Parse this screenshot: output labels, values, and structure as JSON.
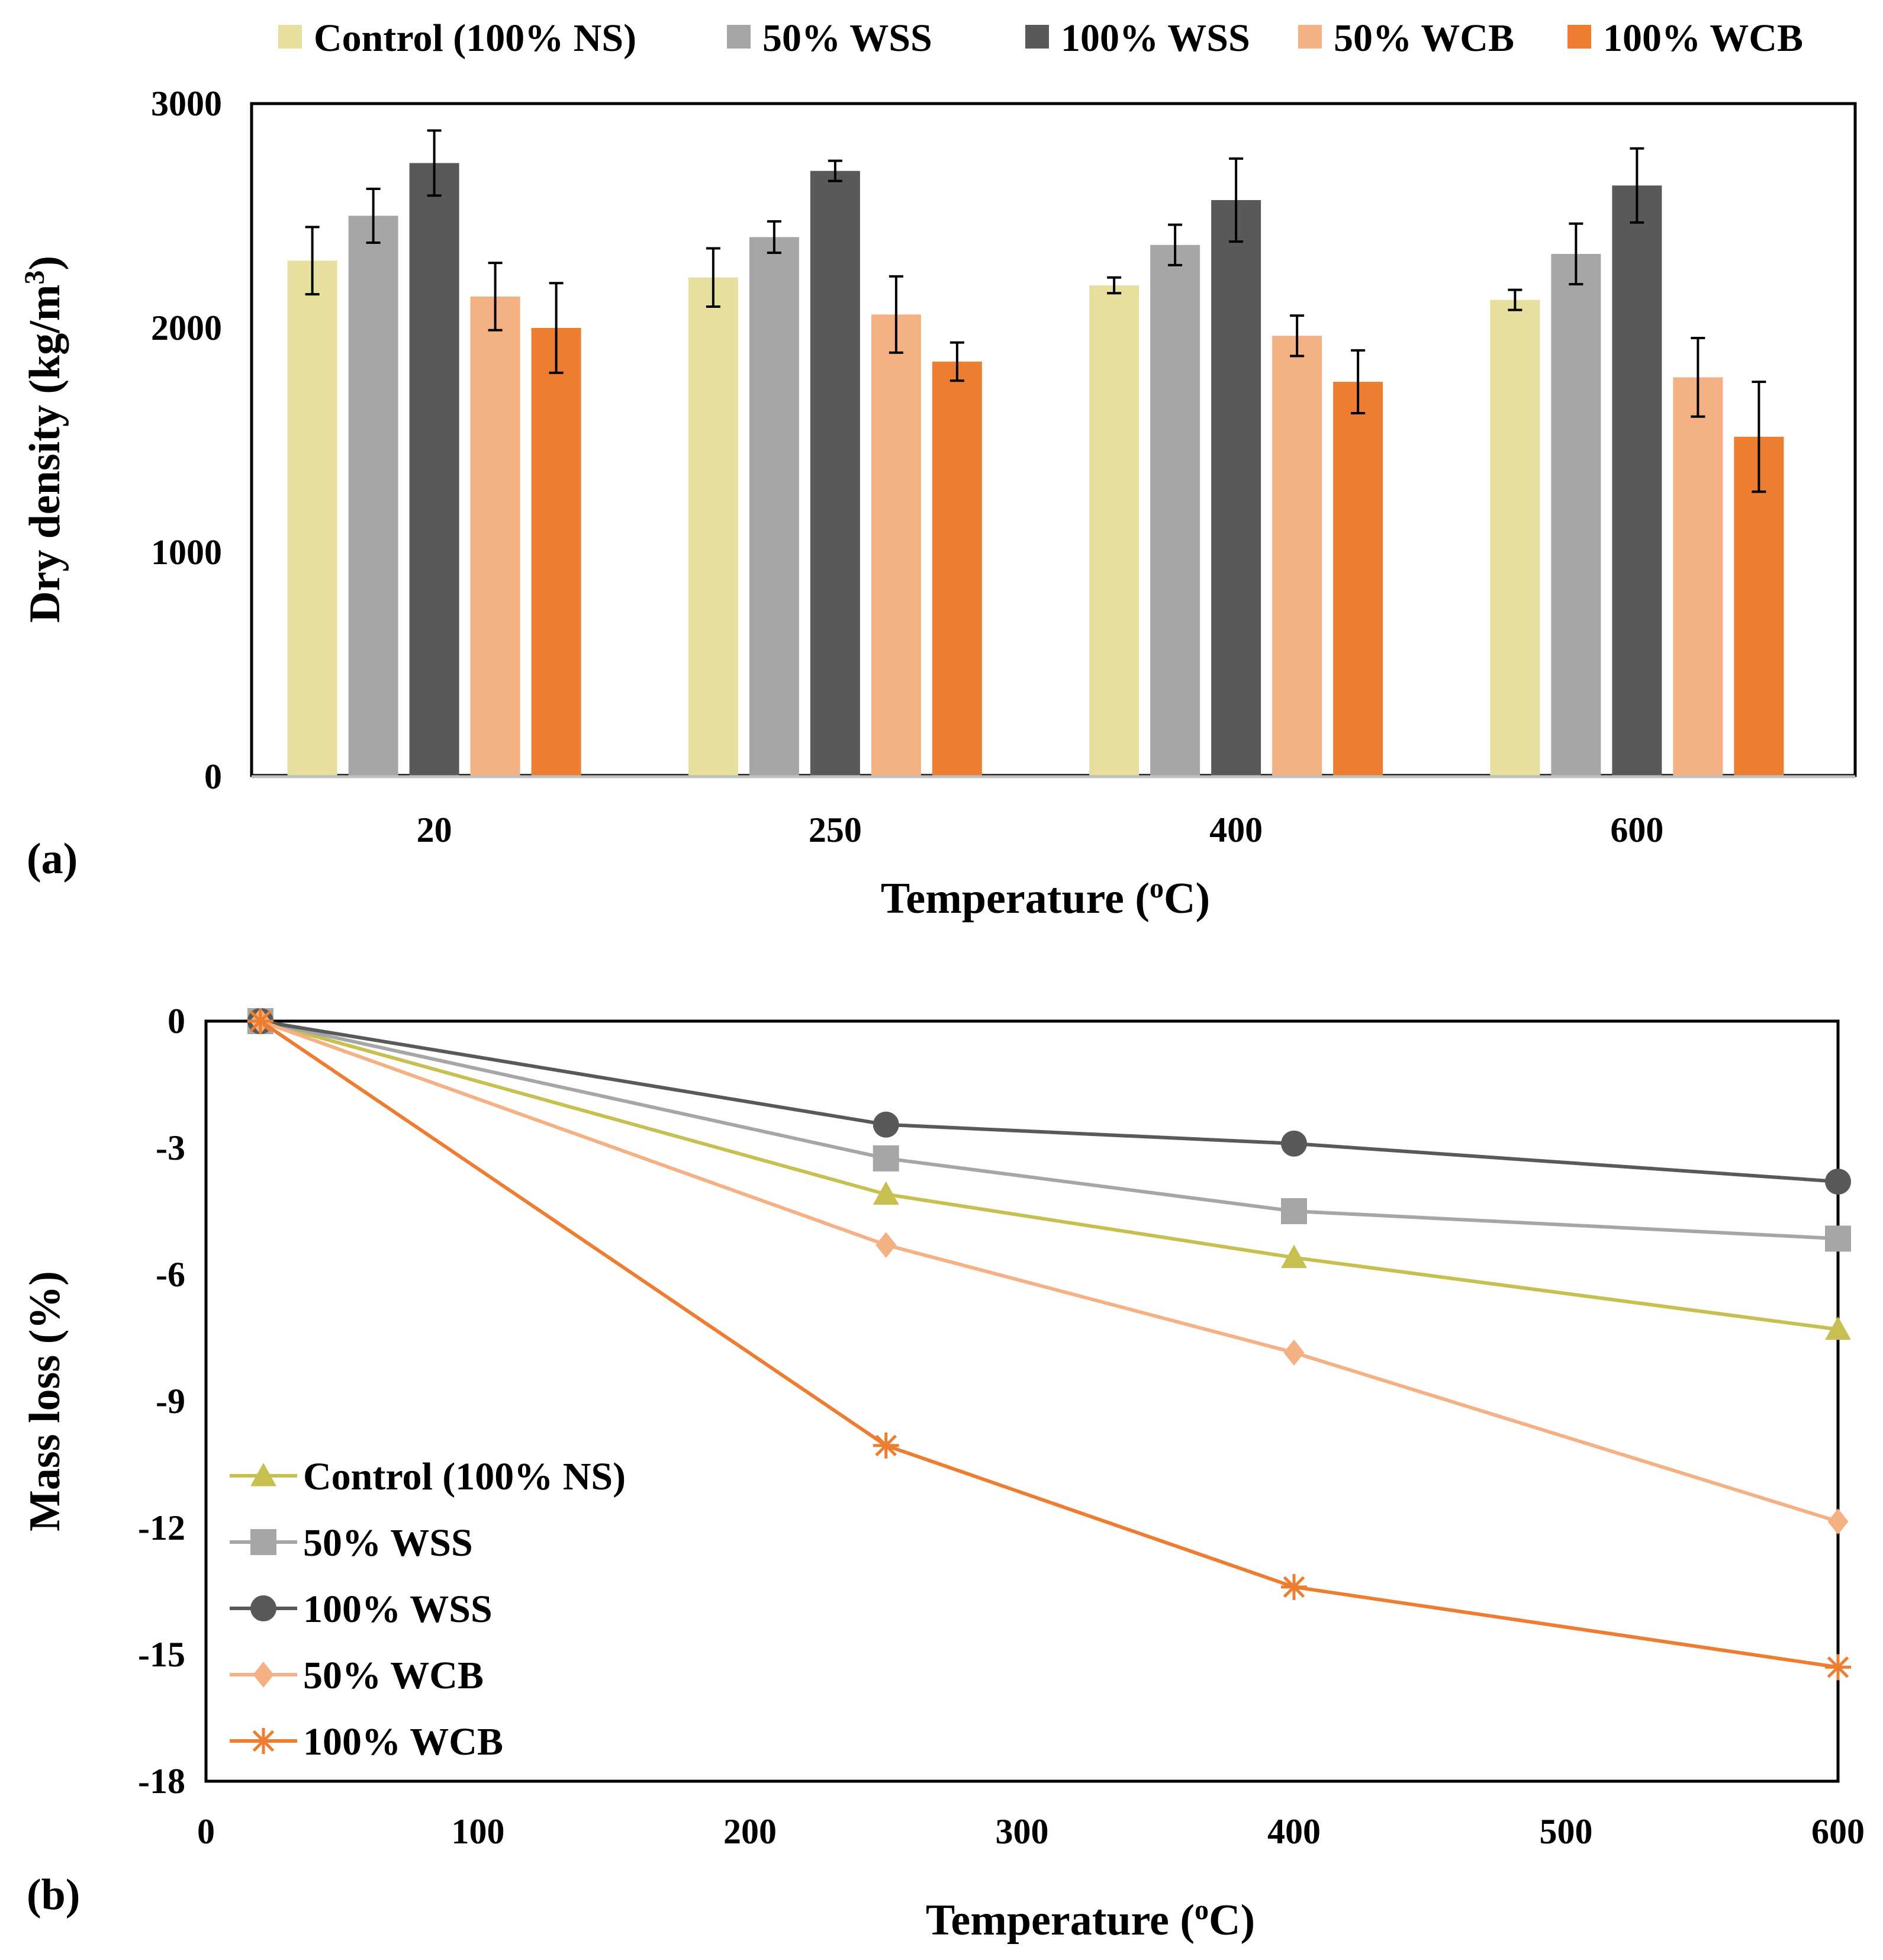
{
  "chart_data": [
    {
      "panel_label": "(a)",
      "type": "bar",
      "title": "",
      "xlabel": "Temperature (",
      "xlabel_sup": "o",
      "xlabel_suffix": "C)",
      "ylabel": "Dry density (kg/m",
      "ylabel_sup": "3",
      "ylabel_suffix": ")",
      "categories": [
        "20",
        "250",
        "400",
        "600"
      ],
      "ylim": [
        0,
        3000
      ],
      "yticks": [
        "0",
        "1000",
        "2000",
        "3000"
      ],
      "legend_position": "top",
      "series": [
        {
          "name": "Control (100% NS)",
          "color": "#e6df9e",
          "values": [
            2300,
            2225,
            2190,
            2125
          ],
          "errors": [
            150,
            130,
            35,
            45
          ]
        },
        {
          "name": "50% WSS",
          "color": "#a6a6a6",
          "values": [
            2500,
            2405,
            2370,
            2330
          ],
          "errors": [
            120,
            70,
            90,
            135
          ]
        },
        {
          "name": "100% WSS",
          "color": "#595959",
          "values": [
            2735,
            2700,
            2570,
            2635
          ],
          "errors": [
            145,
            45,
            185,
            165
          ]
        },
        {
          "name": "50% WCB",
          "color": "#f4b183",
          "values": [
            2140,
            2060,
            1965,
            1780
          ],
          "errors": [
            150,
            170,
            90,
            175
          ]
        },
        {
          "name": "100% WCB",
          "color": "#ed7d31",
          "values": [
            2000,
            1850,
            1760,
            1515
          ],
          "errors": [
            200,
            85,
            140,
            245
          ]
        }
      ]
    },
    {
      "panel_label": "(b)",
      "type": "line",
      "title": "",
      "xlabel": "Temperature (",
      "xlabel_sup": "o",
      "xlabel_suffix": "C)",
      "ylabel": "Mass loss (%)",
      "xlim": [
        0,
        600
      ],
      "ylim": [
        -18,
        0
      ],
      "xticks": [
        "0",
        "100",
        "200",
        "300",
        "400",
        "500",
        "600"
      ],
      "yticks": [
        "0",
        "-3",
        "-6",
        "-9",
        "-12",
        "-15",
        "-18"
      ],
      "legend_position": "bottom-left",
      "x": [
        20,
        250,
        400,
        600
      ],
      "series": [
        {
          "name": "Control (100% NS)",
          "color": "#c7bf4f",
          "marker": "triangle",
          "values": [
            0,
            -4.1,
            -5.6,
            -7.3
          ]
        },
        {
          "name": "50% WSS",
          "color": "#a6a6a6",
          "marker": "square",
          "values": [
            0,
            -3.25,
            -4.5,
            -5.15
          ]
        },
        {
          "name": "100% WSS",
          "color": "#595959",
          "marker": "circle",
          "values": [
            0,
            -2.45,
            -2.9,
            -3.8
          ]
        },
        {
          "name": "50% WCB",
          "color": "#f4b183",
          "marker": "diamond",
          "values": [
            0,
            -5.3,
            -7.85,
            -11.85
          ]
        },
        {
          "name": "100% WCB",
          "color": "#ed7d31",
          "marker": "star",
          "values": [
            0,
            -10.05,
            -13.4,
            -15.3
          ]
        }
      ]
    }
  ]
}
